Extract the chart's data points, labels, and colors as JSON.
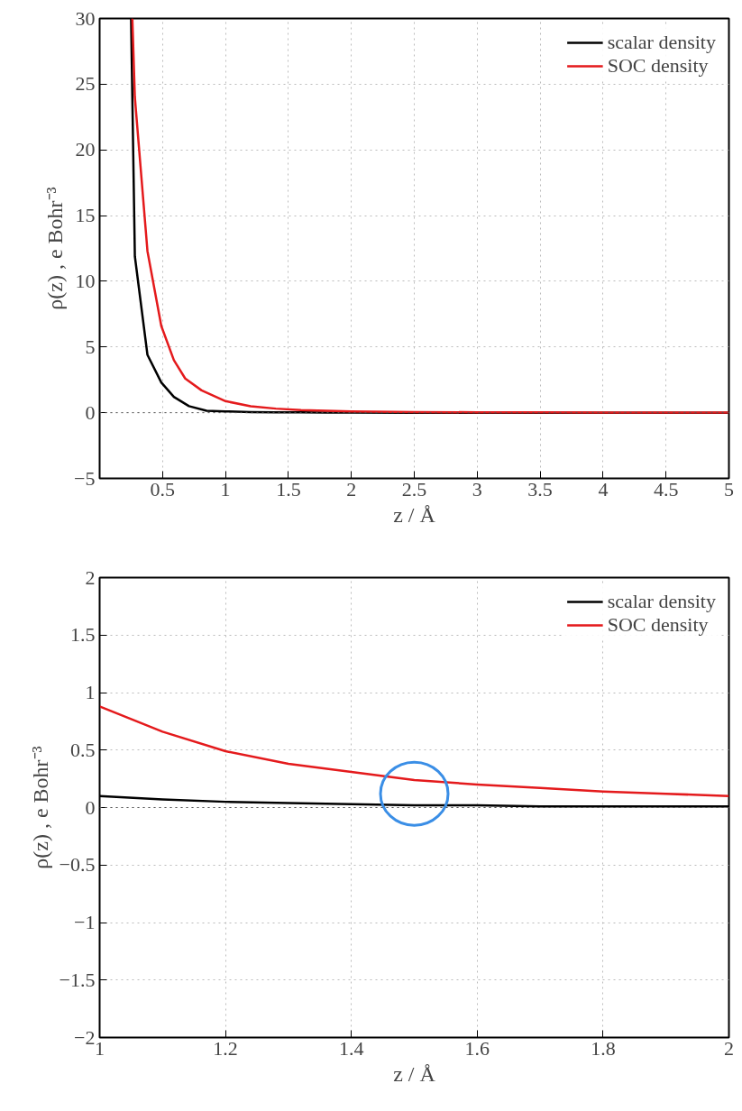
{
  "chart_data": [
    {
      "type": "line",
      "xlabel": "z / Å",
      "ylabel": "ρ(z) , e Bohr⁻³",
      "xlim": [
        0,
        5
      ],
      "ylim": [
        -5,
        30
      ],
      "xticks": [
        0.5,
        1,
        1.5,
        2,
        2.5,
        3,
        3.5,
        4,
        4.5,
        5
      ],
      "yticks": [
        {
          "value": -5,
          "label": "−5"
        },
        0,
        5,
        10,
        15,
        20,
        25,
        30
      ],
      "grid": true,
      "legend": "top right",
      "line_style": "solid",
      "marker": "none",
      "ref_lines": [
        {
          "axis": "y",
          "value": 0,
          "line_style": "dotted",
          "color": "#555555"
        }
      ],
      "series": [
        {
          "name": "scalar density",
          "color": "#000000",
          "x": [
            0.25,
            0.28,
            0.38,
            0.49,
            0.59,
            0.71,
            0.85,
            1.0,
            1.2,
            1.4,
            1.6,
            1.8,
            2.0,
            2.5,
            3.0,
            3.5,
            4.0,
            4.5,
            5.0
          ],
          "values": [
            30,
            11.9,
            4.4,
            2.3,
            1.2,
            0.5,
            0.15,
            0.1,
            0.05,
            0.03,
            0.02,
            0.01,
            0.01,
            0,
            0,
            0,
            0,
            0,
            0
          ]
        },
        {
          "name": "SOC density",
          "color": "#e41a1c",
          "x": [
            0.26,
            0.28,
            0.38,
            0.49,
            0.59,
            0.68,
            0.81,
            1.0,
            1.2,
            1.4,
            1.6,
            1.8,
            2.0,
            2.5,
            3.0,
            3.5,
            4.0,
            4.5,
            5.0
          ],
          "values": [
            30,
            24,
            12.3,
            6.6,
            4.0,
            2.6,
            1.7,
            0.88,
            0.49,
            0.31,
            0.2,
            0.14,
            0.1,
            0.05,
            0.03,
            0.02,
            0.01,
            0.01,
            0.01
          ]
        }
      ]
    },
    {
      "type": "line",
      "xlabel": "z / Å",
      "ylabel": "ρ(z) , e Bohr⁻³",
      "xlim": [
        1,
        2
      ],
      "ylim": [
        -2,
        2
      ],
      "xticks": [
        1,
        1.2,
        1.4,
        1.6,
        1.8,
        2
      ],
      "yticks": [
        {
          "value": -2,
          "label": "−2"
        },
        {
          "value": -1.5,
          "label": "−1.5"
        },
        {
          "value": -1,
          "label": "−1"
        },
        {
          "value": -0.5,
          "label": "−0.5"
        },
        0,
        0.5,
        1,
        1.5,
        2
      ],
      "grid": true,
      "legend": "top right",
      "line_style": "solid",
      "marker": "none",
      "ref_lines": [
        {
          "axis": "y",
          "value": 0,
          "line_style": "dotted",
          "color": "#555555"
        }
      ],
      "series": [
        {
          "name": "scalar density",
          "color": "#000000",
          "x": [
            1.0,
            1.1,
            1.2,
            1.3,
            1.4,
            1.5,
            1.6,
            1.7,
            1.8,
            1.9,
            2.0
          ],
          "values": [
            0.1,
            0.07,
            0.05,
            0.04,
            0.03,
            0.02,
            0.02,
            0.01,
            0.01,
            0.01,
            0.01
          ]
        },
        {
          "name": "SOC density",
          "color": "#e41a1c",
          "x": [
            1.0,
            1.1,
            1.2,
            1.3,
            1.4,
            1.5,
            1.6,
            1.7,
            1.8,
            1.9,
            2.0
          ],
          "values": [
            0.88,
            0.66,
            0.49,
            0.38,
            0.31,
            0.24,
            0.2,
            0.17,
            0.14,
            0.12,
            0.1
          ]
        }
      ]
    }
  ]
}
